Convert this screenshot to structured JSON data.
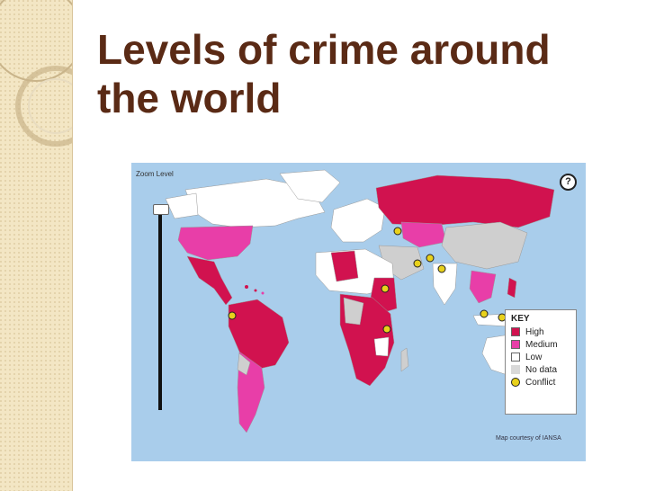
{
  "slide": {
    "title": "Levels of crime around the world"
  },
  "map": {
    "zoom_label": "Zoom Level",
    "help_symbol": "?",
    "credit": "Map courtesy of IANSA",
    "ocean_color": "#a9cdeb",
    "key": {
      "title": "KEY",
      "items": [
        {
          "label": "High",
          "color": "#d1124f"
        },
        {
          "label": "Medium",
          "color": "#e83ea8"
        },
        {
          "label": "Low",
          "color": "#ffffff"
        },
        {
          "label": "No data",
          "color": "#d9d9d9"
        },
        {
          "label": "Conflict",
          "color": "#e8d11b",
          "icon": "conflict-marker-icon"
        }
      ]
    }
  }
}
